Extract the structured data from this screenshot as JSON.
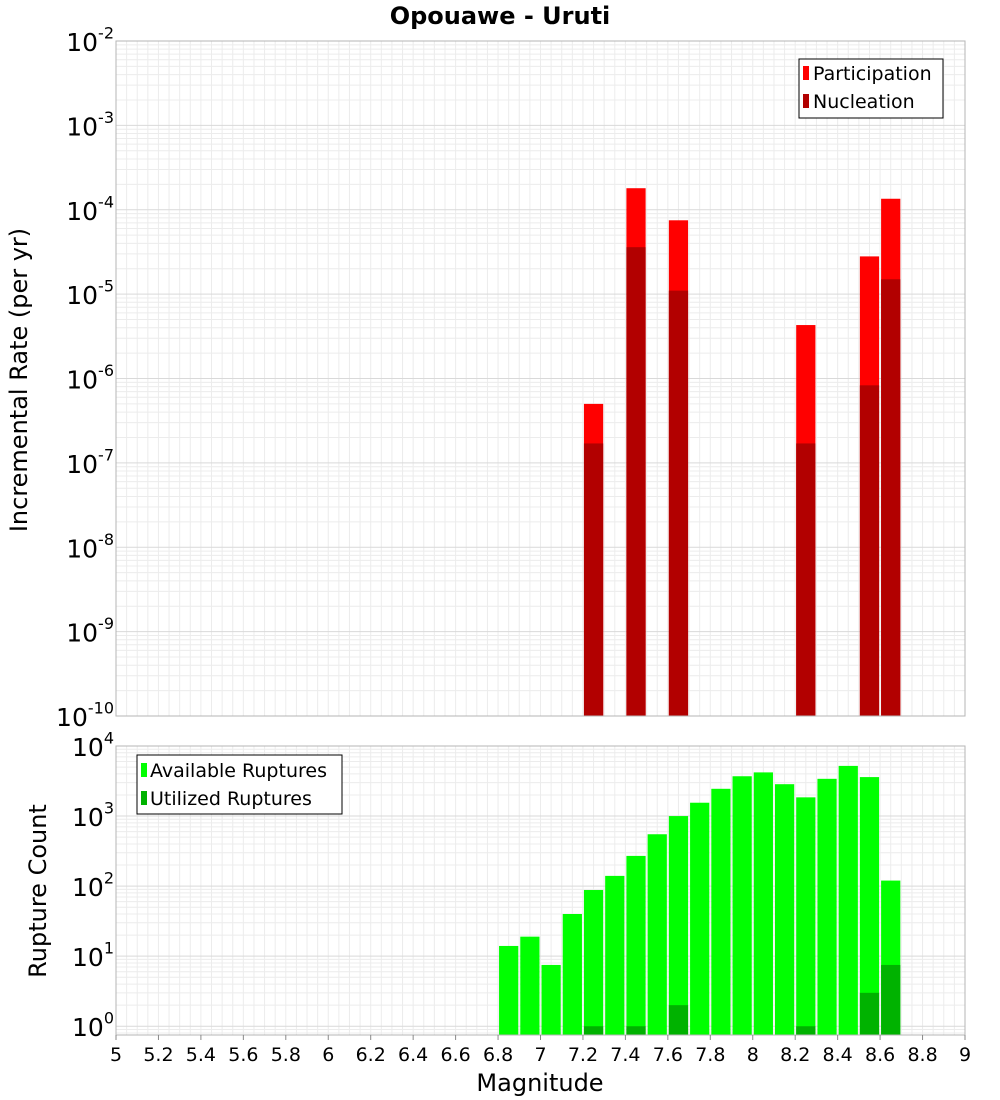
{
  "chart_data": [
    {
      "type": "bar",
      "title": "Opouawe - Uruti",
      "ylabel": "Incremental Rate (per yr)",
      "xlabel": "",
      "yscale": "log",
      "ylim": [
        1e-10,
        0.01
      ],
      "y_tick_exponents": [
        -10,
        -9,
        -8,
        -7,
        -6,
        -5,
        -4,
        -3,
        -2
      ],
      "xlim": [
        5,
        9
      ],
      "bar_width": 0.1,
      "grid": true,
      "legend_position": "top-right",
      "series": [
        {
          "name": "Participation",
          "color": "#ff0000",
          "points": [
            {
              "x": 7.25,
              "y": 5e-07
            },
            {
              "x": 7.45,
              "y": 0.00018
            },
            {
              "x": 7.65,
              "y": 7.5e-05
            },
            {
              "x": 8.25,
              "y": 4.3e-06
            },
            {
              "x": 8.55,
              "y": 2.8e-05
            },
            {
              "x": 8.65,
              "y": 0.000135
            }
          ]
        },
        {
          "name": "Nucleation",
          "color": "#b20000",
          "points": [
            {
              "x": 7.25,
              "y": 1.7e-07
            },
            {
              "x": 7.45,
              "y": 3.6e-05
            },
            {
              "x": 7.65,
              "y": 1.1e-05
            },
            {
              "x": 8.25,
              "y": 1.7e-07
            },
            {
              "x": 8.55,
              "y": 8.3e-07
            },
            {
              "x": 8.65,
              "y": 1.5e-05
            }
          ]
        }
      ]
    },
    {
      "type": "bar",
      "title": "",
      "ylabel": "Rupture Count",
      "xlabel": "Magnitude",
      "yscale": "log",
      "ylim": [
        0.75,
        10000
      ],
      "y_tick_exponents": [
        0,
        1,
        2,
        3,
        4
      ],
      "xlim": [
        5,
        9
      ],
      "x_ticks": [
        "5",
        "5.2",
        "5.4",
        "5.6",
        "5.8",
        "6",
        "6.2",
        "6.4",
        "6.6",
        "6.8",
        "7",
        "7.2",
        "7.4",
        "7.6",
        "7.8",
        "8",
        "8.2",
        "8.4",
        "8.6",
        "8.8",
        "9"
      ],
      "bar_width": 0.1,
      "grid": true,
      "legend_position": "top-left",
      "series": [
        {
          "name": "Available Ruptures",
          "color": "#00ff00",
          "points": [
            {
              "x": 6.85,
              "y": 14
            },
            {
              "x": 6.95,
              "y": 19
            },
            {
              "x": 7.05,
              "y": 7.5
            },
            {
              "x": 7.15,
              "y": 40
            },
            {
              "x": 7.25,
              "y": 88
            },
            {
              "x": 7.35,
              "y": 140
            },
            {
              "x": 7.45,
              "y": 270
            },
            {
              "x": 7.55,
              "y": 550
            },
            {
              "x": 7.65,
              "y": 1000
            },
            {
              "x": 7.75,
              "y": 1550
            },
            {
              "x": 7.85,
              "y": 2450
            },
            {
              "x": 7.95,
              "y": 3700
            },
            {
              "x": 8.05,
              "y": 4200
            },
            {
              "x": 8.15,
              "y": 2850
            },
            {
              "x": 8.25,
              "y": 1850
            },
            {
              "x": 8.35,
              "y": 3400
            },
            {
              "x": 8.45,
              "y": 5200
            },
            {
              "x": 8.55,
              "y": 3600
            },
            {
              "x": 8.65,
              "y": 120
            }
          ]
        },
        {
          "name": "Utilized Ruptures",
          "color": "#00b200",
          "points": [
            {
              "x": 7.25,
              "y": 1
            },
            {
              "x": 7.45,
              "y": 1
            },
            {
              "x": 7.65,
              "y": 2
            },
            {
              "x": 8.25,
              "y": 1
            },
            {
              "x": 8.55,
              "y": 3
            },
            {
              "x": 8.65,
              "y": 7.5
            }
          ]
        }
      ]
    }
  ]
}
